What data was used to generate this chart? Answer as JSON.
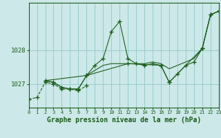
{
  "background_color": "#cce8e8",
  "grid_color": "#99cccc",
  "line_color": "#1a5c1a",
  "xlabel": "Graphe pression niveau de la mer (hPa)",
  "xlabel_fontsize": 7.0,
  "ylabel_ticks": [
    1027,
    1028
  ],
  "xlim": [
    0,
    23
  ],
  "ylim": [
    1026.3,
    1029.4
  ],
  "series": [
    {
      "x": [
        0,
        1,
        2,
        3,
        4,
        5,
        6,
        7
      ],
      "y": [
        1026.55,
        1026.6,
        1027.05,
        1027.0,
        1026.85,
        1026.85,
        1026.8,
        1026.95
      ],
      "style": "--",
      "marker": "+"
    },
    {
      "x": [
        2,
        3,
        4,
        5,
        6,
        7,
        8,
        9,
        10,
        11,
        12,
        13,
        14,
        15,
        16,
        17,
        18,
        19,
        20,
        21,
        22,
        23
      ],
      "y": [
        1027.1,
        1027.05,
        1026.9,
        1026.85,
        1026.85,
        1027.25,
        1027.55,
        1027.75,
        1028.55,
        1028.85,
        1027.75,
        1027.6,
        1027.55,
        1027.6,
        1027.55,
        1027.05,
        1027.3,
        1027.55,
        1027.65,
        1028.05,
        1029.05,
        1029.15
      ],
      "style": "-",
      "marker": "+"
    },
    {
      "x": [
        2,
        3,
        4,
        5,
        6,
        7,
        8,
        9,
        10,
        11,
        12,
        13,
        14,
        15,
        16,
        17,
        18,
        19,
        20,
        21,
        22,
        23
      ],
      "y": [
        1027.1,
        1027.05,
        1026.9,
        1026.85,
        1026.85,
        1027.25,
        1027.4,
        1027.55,
        1027.6,
        1027.6,
        1027.6,
        1027.6,
        1027.6,
        1027.65,
        1027.6,
        1027.45,
        1027.55,
        1027.65,
        1027.75,
        1028.05,
        1029.05,
        1029.15
      ],
      "style": "-",
      "marker": null
    },
    {
      "x": [
        2,
        7,
        12,
        16,
        17,
        21,
        22,
        23
      ],
      "y": [
        1027.1,
        1027.25,
        1027.6,
        1027.55,
        1027.05,
        1028.05,
        1029.05,
        1029.15
      ],
      "style": "-",
      "marker": "+"
    }
  ]
}
